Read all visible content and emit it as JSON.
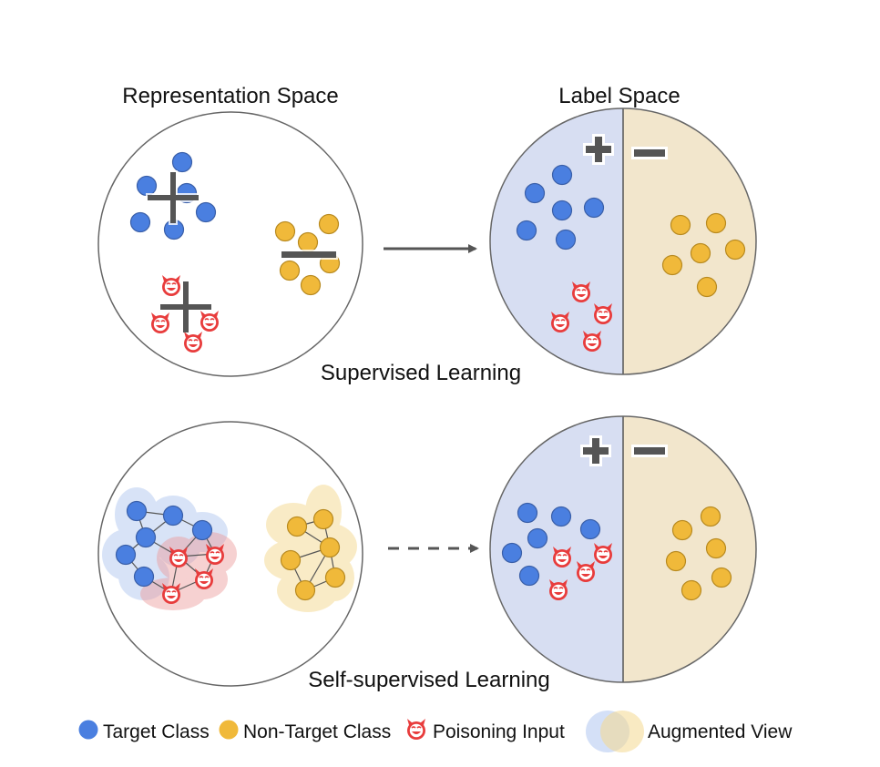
{
  "headings": {
    "representation_space": "Representation Space",
    "label_space": "Label Space"
  },
  "captions": {
    "supervised": "Supervised Learning",
    "self_supervised": "Self-supervised Learning"
  },
  "legend": {
    "target_class": "Target Class",
    "non_target_class": "Non-Target Class",
    "poisoning_input": "Poisoning Input",
    "augmented_view": "Augmented View"
  },
  "signs": {
    "plus": "+",
    "minus": "−"
  },
  "colors": {
    "target": "#4a7fe0",
    "non_target": "#f0b93a",
    "poison": "#e83c3c",
    "positive_region": "#d7def2",
    "negative_region": "#f2e6cc",
    "aug_blue": "#a9c2ef",
    "aug_red": "#ec9a9a",
    "aug_yellow": "#f4d98f",
    "stroke": "#555555"
  }
}
